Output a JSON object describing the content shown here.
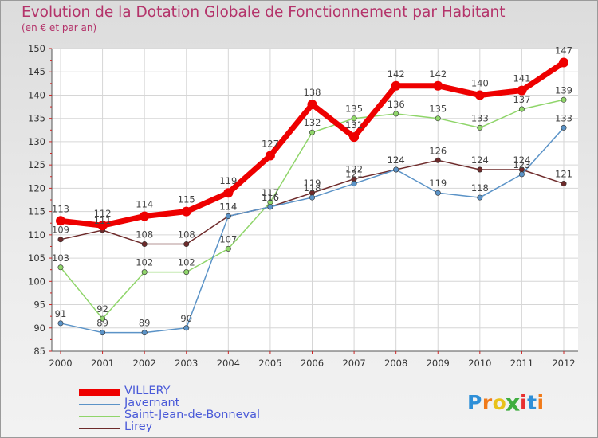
{
  "chart_data": {
    "type": "line",
    "title": "Evolution de la Dotation Globale de Fonctionnement par Habitant",
    "subtitle": "(en € et par an)",
    "xlabel": "",
    "ylabel": "",
    "x": [
      "2000",
      "2001",
      "2002",
      "2003",
      "2004",
      "2005",
      "2006",
      "2007",
      "2008",
      "2009",
      "2010",
      "2011",
      "2012"
    ],
    "ylim": [
      85,
      150
    ],
    "yticks": [
      85,
      90,
      95,
      100,
      105,
      110,
      115,
      120,
      125,
      130,
      135,
      140,
      145,
      150
    ],
    "grid": true,
    "legend_position": "bottom-left",
    "series": [
      {
        "name": "VILLERY",
        "color": "#ee0000",
        "values": [
          113,
          112,
          114,
          115,
          119,
          127,
          138,
          131,
          142,
          142,
          140,
          141,
          147
        ]
      },
      {
        "name": "Javernant",
        "color": "#5b93c7",
        "values": [
          91,
          89,
          89,
          90,
          114,
          116,
          118,
          121,
          124,
          119,
          118,
          123,
          133
        ]
      },
      {
        "name": "Saint-Jean-de-Bonneval",
        "color": "#8fd56a",
        "values": [
          103,
          92,
          102,
          102,
          107,
          117,
          132,
          135,
          136,
          135,
          133,
          137,
          139
        ]
      },
      {
        "name": "Lirey",
        "color": "#6e2b2b",
        "values": [
          109,
          111,
          108,
          108,
          114,
          116,
          119,
          122,
          124,
          126,
          124,
          124,
          121
        ]
      }
    ]
  },
  "logo": {
    "text": "Proxiti",
    "colors": [
      "#2e8fd8",
      "#f07a1a",
      "#e8c21a",
      "#3fae3f",
      "#e83030",
      "#2e8fd8",
      "#f07a1a"
    ]
  }
}
